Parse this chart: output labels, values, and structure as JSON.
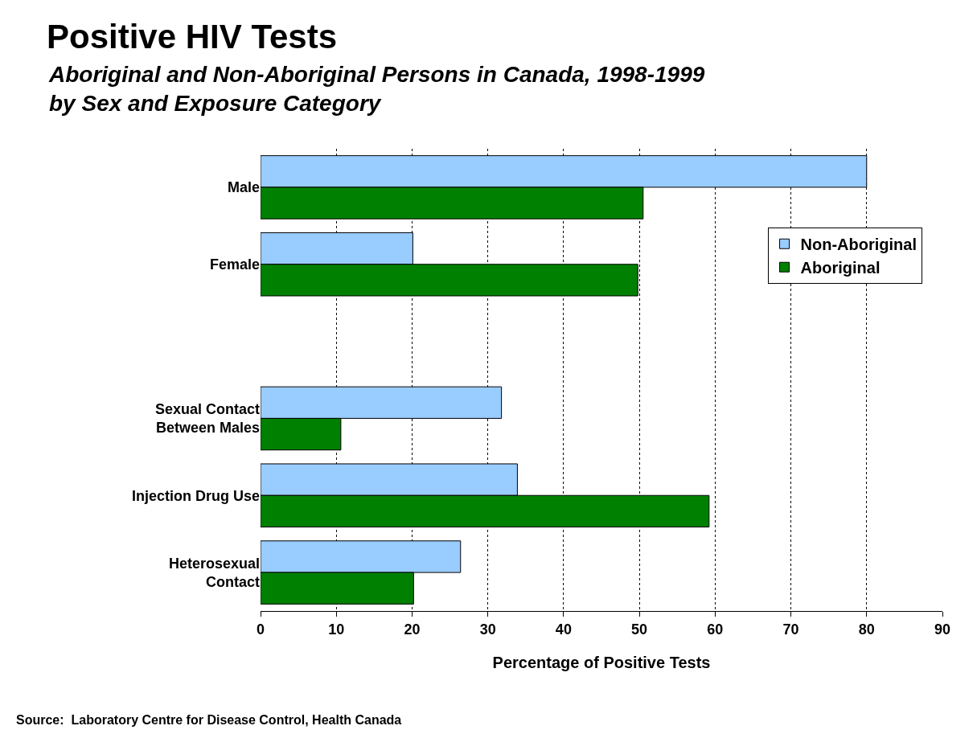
{
  "chart_data": {
    "type": "bar",
    "orientation": "horizontal",
    "title": "Positive HIV Tests",
    "subtitle": "Aboriginal and Non-Aboriginal Persons in Canada, 1998-1999\nby Sex and Exposure Category",
    "xlabel": "Percentage of Positive Tests",
    "categories": [
      "Male",
      "Female",
      null,
      "Sexual Contact\nBetween Males",
      "Injection Drug Use",
      "Heterosexual\nContact"
    ],
    "series": [
      {
        "name": "Non-Aboriginal",
        "color": "#99ccff",
        "values": [
          80,
          20.1,
          null,
          31.8,
          33.9,
          26.4
        ]
      },
      {
        "name": "Aboriginal",
        "color": "#008000",
        "values": [
          50.5,
          49.8,
          null,
          10.6,
          59.2,
          20.2
        ]
      }
    ],
    "xlim": [
      0,
      90
    ],
    "xticks": [
      0,
      10,
      20,
      30,
      40,
      50,
      60,
      70,
      80,
      90
    ],
    "grid": "x",
    "legend": "top right",
    "annotations": [
      "Source:  Laboratory Centre for Disease Control, Health Canada"
    ]
  }
}
